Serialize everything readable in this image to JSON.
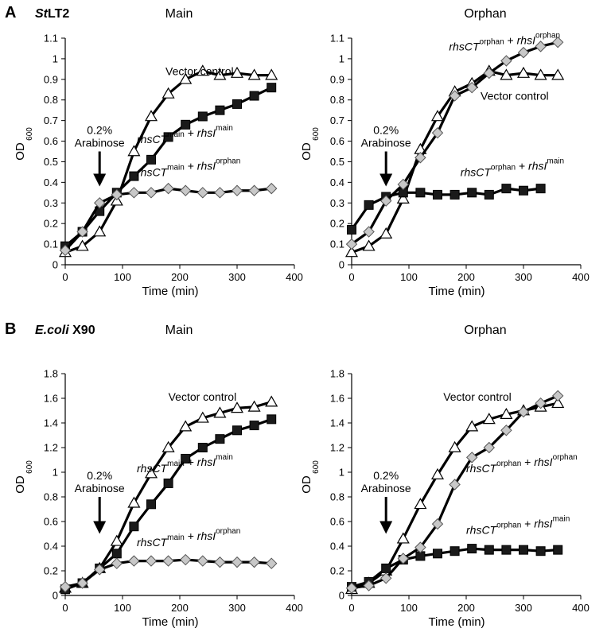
{
  "figure": {
    "panels": [
      {
        "letter": "A",
        "organism_italic": "St",
        "organism_rest": "LT2"
      },
      {
        "letter": "B",
        "organism_italic": "E.coli",
        "organism_rest": " X90"
      }
    ]
  },
  "chart_data": [
    {
      "type": "line",
      "panel": "A",
      "title": "Main",
      "xlabel": "Time (min)",
      "ylabel_main": "OD",
      "ylabel_sub": "600",
      "xlim": [
        0,
        400
      ],
      "ylim": [
        0,
        1.1
      ],
      "xticks": [
        0,
        100,
        200,
        300,
        400
      ],
      "yticks": [
        0,
        0.1,
        0.2,
        0.3,
        0.4,
        0.5,
        0.6,
        0.7,
        0.8,
        0.9,
        1,
        1.1
      ],
      "arrow": {
        "x": 60,
        "y_from": 0.55,
        "y_to": 0.38,
        "label1": "0.2%",
        "label2": "Arabinose"
      },
      "series": [
        {
          "marker": "triangle",
          "x": [
            0,
            30,
            60,
            90,
            120,
            150,
            180,
            210,
            240,
            270,
            300,
            330,
            360
          ],
          "y": [
            0.06,
            0.09,
            0.16,
            0.31,
            0.55,
            0.72,
            0.83,
            0.9,
            0.94,
            0.92,
            0.93,
            0.92,
            0.92
          ]
        },
        {
          "marker": "square",
          "x": [
            0,
            30,
            60,
            90,
            120,
            150,
            180,
            210,
            240,
            270,
            300,
            330,
            360
          ],
          "y": [
            0.09,
            0.16,
            0.26,
            0.35,
            0.43,
            0.51,
            0.62,
            0.68,
            0.72,
            0.75,
            0.78,
            0.82,
            0.86
          ]
        },
        {
          "marker": "diamond",
          "x": [
            0,
            30,
            60,
            90,
            120,
            150,
            180,
            210,
            240,
            270,
            300,
            330,
            360
          ],
          "y": [
            0.07,
            0.16,
            0.3,
            0.34,
            0.35,
            0.35,
            0.37,
            0.36,
            0.35,
            0.35,
            0.36,
            0.36,
            0.37
          ]
        }
      ],
      "annotations": [
        {
          "x": 175,
          "y": 0.92,
          "parts": [
            {
              "t": "Vector control",
              "s": "n"
            }
          ]
        },
        {
          "x": 125,
          "y": 0.59,
          "parts": [
            {
              "t": "rhsCT",
              "s": "i"
            },
            {
              "t": "main",
              "s": "sup"
            },
            {
              "t": " + ",
              "s": "n"
            },
            {
              "t": "rhsI",
              "s": "i"
            },
            {
              "t": "main",
              "s": "sup"
            }
          ]
        },
        {
          "x": 125,
          "y": 0.43,
          "parts": [
            {
              "t": "rhsCT",
              "s": "i"
            },
            {
              "t": "main",
              "s": "sup"
            },
            {
              "t": " + ",
              "s": "n"
            },
            {
              "t": "rhsI",
              "s": "i"
            },
            {
              "t": "orphan",
              "s": "sup"
            }
          ]
        }
      ]
    },
    {
      "type": "line",
      "panel": "A",
      "title": "Orphan",
      "xlabel": "Time (min)",
      "ylabel_main": "OD",
      "ylabel_sub": "600",
      "xlim": [
        0,
        400
      ],
      "ylim": [
        0,
        1.1
      ],
      "xticks": [
        0,
        100,
        200,
        300,
        400
      ],
      "yticks": [
        0,
        0.1,
        0.2,
        0.3,
        0.4,
        0.5,
        0.6,
        0.7,
        0.8,
        0.9,
        1,
        1.1
      ],
      "arrow": {
        "x": 60,
        "y_from": 0.55,
        "y_to": 0.38,
        "label1": "0.2%",
        "label2": "Arabinose"
      },
      "series": [
        {
          "marker": "triangle",
          "x": [
            0,
            30,
            60,
            90,
            120,
            150,
            180,
            210,
            240,
            270,
            300,
            330,
            360
          ],
          "y": [
            0.06,
            0.09,
            0.15,
            0.32,
            0.56,
            0.72,
            0.84,
            0.88,
            0.94,
            0.92,
            0.93,
            0.92,
            0.92
          ]
        },
        {
          "marker": "square",
          "x": [
            0,
            30,
            60,
            90,
            120,
            150,
            180,
            210,
            240,
            270,
            300,
            330
          ],
          "y": [
            0.17,
            0.29,
            0.33,
            0.35,
            0.35,
            0.34,
            0.34,
            0.35,
            0.34,
            0.37,
            0.36,
            0.37
          ]
        },
        {
          "marker": "diamond",
          "x": [
            0,
            30,
            60,
            90,
            120,
            150,
            180,
            210,
            240,
            270,
            300,
            330,
            360
          ],
          "y": [
            0.1,
            0.16,
            0.31,
            0.39,
            0.52,
            0.64,
            0.82,
            0.86,
            0.93,
            0.99,
            1.03,
            1.06,
            1.08
          ]
        }
      ],
      "annotations": [
        {
          "x": 170,
          "y": 1.04,
          "parts": [
            {
              "t": "rhsCT",
              "s": "i"
            },
            {
              "t": "orphan",
              "s": "sup"
            },
            {
              "t": " + ",
              "s": "n"
            },
            {
              "t": "rhsI",
              "s": "i"
            },
            {
              "t": "orphan",
              "s": "sup"
            }
          ]
        },
        {
          "x": 225,
          "y": 0.8,
          "parts": [
            {
              "t": "Vector control",
              "s": "n"
            }
          ]
        },
        {
          "x": 190,
          "y": 0.43,
          "parts": [
            {
              "t": "rhsCT",
              "s": "i"
            },
            {
              "t": "orphan",
              "s": "sup"
            },
            {
              "t": " + ",
              "s": "n"
            },
            {
              "t": "rhsI",
              "s": "i"
            },
            {
              "t": "main",
              "s": "sup"
            }
          ]
        }
      ]
    },
    {
      "type": "line",
      "panel": "B",
      "title": "Main",
      "xlabel": "Time (min)",
      "ylabel_main": "OD",
      "ylabel_sub": "600",
      "xlim": [
        0,
        400
      ],
      "ylim": [
        0,
        1.8
      ],
      "xticks": [
        0,
        100,
        200,
        300,
        400
      ],
      "yticks": [
        0,
        0.2,
        0.4,
        0.6,
        0.8,
        1,
        1.2,
        1.4,
        1.6,
        1.8
      ],
      "arrow": {
        "x": 60,
        "y_from": 0.8,
        "y_to": 0.5,
        "label1": "0.2%",
        "label2": "Arabinose"
      },
      "series": [
        {
          "marker": "triangle",
          "x": [
            0,
            30,
            60,
            90,
            120,
            150,
            180,
            210,
            240,
            270,
            300,
            330,
            360
          ],
          "y": [
            0.06,
            0.1,
            0.22,
            0.44,
            0.75,
            0.99,
            1.2,
            1.37,
            1.44,
            1.48,
            1.52,
            1.53,
            1.57
          ]
        },
        {
          "marker": "square",
          "x": [
            0,
            30,
            60,
            90,
            120,
            150,
            180,
            210,
            240,
            270,
            300,
            330,
            360
          ],
          "y": [
            0.05,
            0.1,
            0.22,
            0.34,
            0.56,
            0.74,
            0.91,
            1.11,
            1.2,
            1.27,
            1.34,
            1.38,
            1.43
          ]
        },
        {
          "marker": "diamond",
          "x": [
            0,
            30,
            60,
            90,
            120,
            150,
            180,
            210,
            240,
            270,
            300,
            330,
            360
          ],
          "y": [
            0.07,
            0.1,
            0.21,
            0.26,
            0.28,
            0.28,
            0.28,
            0.29,
            0.28,
            0.27,
            0.27,
            0.27,
            0.26
          ]
        }
      ],
      "annotations": [
        {
          "x": 180,
          "y": 1.58,
          "parts": [
            {
              "t": "Vector control",
              "s": "n"
            }
          ]
        },
        {
          "x": 125,
          "y": 1.0,
          "parts": [
            {
              "t": "rhsCT",
              "s": "i"
            },
            {
              "t": "main",
              "s": "sup"
            },
            {
              "t": " + ",
              "s": "n"
            },
            {
              "t": "rhsI",
              "s": "i"
            },
            {
              "t": "main",
              "s": "sup"
            }
          ]
        },
        {
          "x": 125,
          "y": 0.4,
          "parts": [
            {
              "t": "rhsCT",
              "s": "i"
            },
            {
              "t": "main",
              "s": "sup"
            },
            {
              "t": " + ",
              "s": "n"
            },
            {
              "t": "rhsI",
              "s": "i"
            },
            {
              "t": "orphan",
              "s": "sup"
            }
          ]
        }
      ]
    },
    {
      "type": "line",
      "panel": "B",
      "title": "Orphan",
      "xlabel": "Time (min)",
      "ylabel_main": "OD",
      "ylabel_sub": "600",
      "xlim": [
        0,
        400
      ],
      "ylim": [
        0,
        1.8
      ],
      "xticks": [
        0,
        100,
        200,
        300,
        400
      ],
      "yticks": [
        0,
        0.2,
        0.4,
        0.6,
        0.8,
        1,
        1.2,
        1.4,
        1.6,
        1.8
      ],
      "arrow": {
        "x": 60,
        "y_from": 0.8,
        "y_to": 0.5,
        "label1": "0.2%",
        "label2": "Arabinose"
      },
      "series": [
        {
          "marker": "triangle",
          "x": [
            0,
            30,
            60,
            90,
            120,
            150,
            180,
            210,
            240,
            270,
            300,
            330,
            360
          ],
          "y": [
            0.05,
            0.1,
            0.2,
            0.46,
            0.74,
            0.98,
            1.2,
            1.37,
            1.43,
            1.47,
            1.5,
            1.53,
            1.56
          ]
        },
        {
          "marker": "square",
          "x": [
            0,
            30,
            60,
            90,
            120,
            150,
            180,
            210,
            240,
            270,
            300,
            330,
            360
          ],
          "y": [
            0.07,
            0.11,
            0.22,
            0.29,
            0.32,
            0.34,
            0.36,
            0.38,
            0.37,
            0.37,
            0.37,
            0.36,
            0.37
          ]
        },
        {
          "marker": "diamond",
          "x": [
            0,
            30,
            60,
            90,
            120,
            150,
            180,
            210,
            240,
            270,
            300,
            330,
            360
          ],
          "y": [
            0.06,
            0.08,
            0.14,
            0.3,
            0.39,
            0.58,
            0.9,
            1.12,
            1.2,
            1.34,
            1.49,
            1.56,
            1.62
          ]
        }
      ],
      "annotations": [
        {
          "x": 160,
          "y": 1.58,
          "parts": [
            {
              "t": "Vector control",
              "s": "n"
            }
          ]
        },
        {
          "x": 200,
          "y": 1.0,
          "parts": [
            {
              "t": "rhsCT",
              "s": "i"
            },
            {
              "t": "orphan",
              "s": "sup"
            },
            {
              "t": " + ",
              "s": "n"
            },
            {
              "t": "rhsI",
              "s": "i"
            },
            {
              "t": "orphan",
              "s": "sup"
            }
          ]
        },
        {
          "x": 200,
          "y": 0.5,
          "parts": [
            {
              "t": "rhsCT",
              "s": "i"
            },
            {
              "t": "orphan",
              "s": "sup"
            },
            {
              "t": " + ",
              "s": "n"
            },
            {
              "t": "rhsI",
              "s": "i"
            },
            {
              "t": "main",
              "s": "sup"
            }
          ]
        }
      ]
    }
  ]
}
